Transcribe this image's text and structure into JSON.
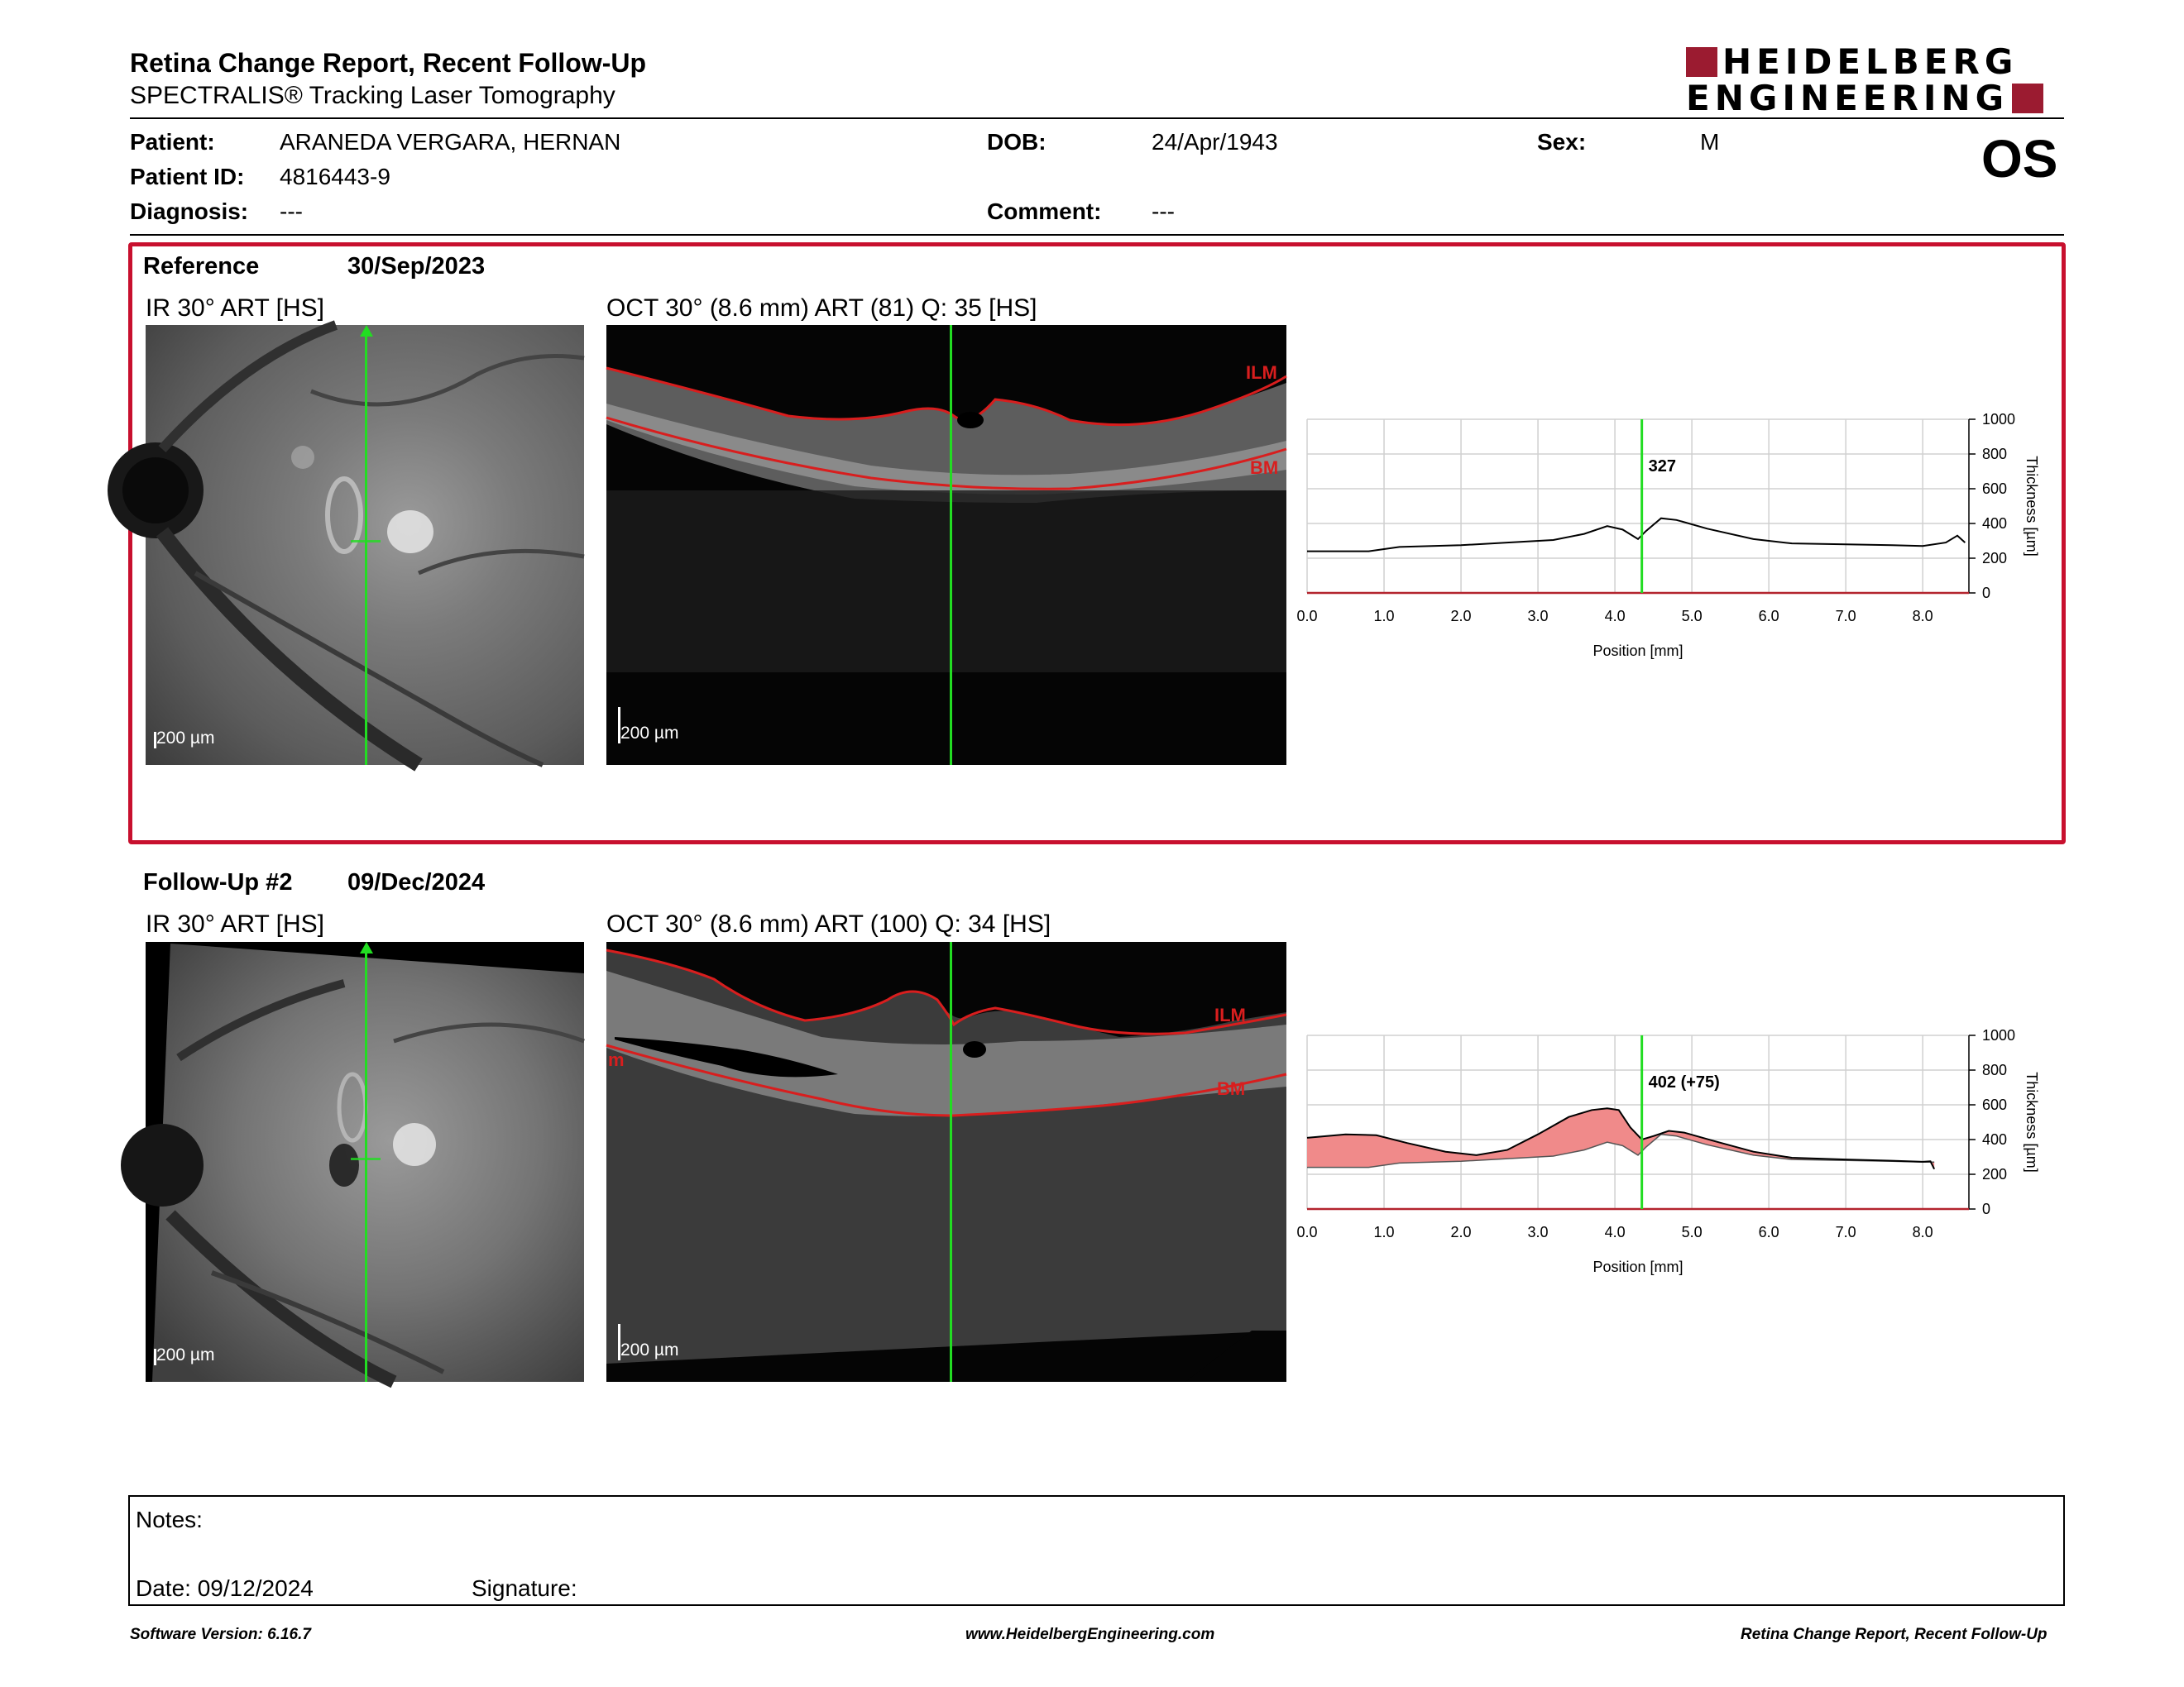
{
  "report": {
    "title": "Retina Change Report, Recent Follow-Up",
    "subtitle": "SPECTRALIS® Tracking Laser Tomography",
    "logo_line1": "HEIDELBERG",
    "logo_line2": "ENGINEERING"
  },
  "patient": {
    "patient_label": "Patient:",
    "patient_value": "ARANEDA VERGARA, HERNAN",
    "id_label": "Patient ID:",
    "id_value": "4816443-9",
    "diagnosis_label": "Diagnosis:",
    "diagnosis_value": "---",
    "dob_label": "DOB:",
    "dob_value": "24/Apr/1943",
    "comment_label": "Comment:",
    "comment_value": "---",
    "sex_label": "Sex:",
    "sex_value": "M",
    "eye": "OS"
  },
  "reference": {
    "label": "Reference",
    "date": "30/Sep/2023",
    "ir_caption": "IR 30° ART [HS]",
    "oct_caption": "OCT 30° (8.6 mm) ART (81) Q: 35 [HS]",
    "scale_ir": "200 µm",
    "scale_oct": "200 µm",
    "ilm": "ILM",
    "bm": "BM",
    "marker_value": "327"
  },
  "followup": {
    "label": "Follow-Up #2",
    "date": "09/Dec/2024",
    "ir_caption": "IR 30° ART [HS]",
    "oct_caption": "OCT 30° (8.6 mm) ART (100) Q: 34 [HS]",
    "scale_ir": "200 µm",
    "scale_oct": "200 µm",
    "ilm": "ILM",
    "bm": "BM",
    "m_label": "m",
    "marker_value": "402 (+75)"
  },
  "colors": {
    "frame_red": "#c8102e",
    "logo_red": "#9b1b30",
    "scan_line_green": "#22dd22",
    "difference_fill": "#f08a8a",
    "segmentation_red": "#d81e1e"
  },
  "chart_data": [
    {
      "type": "line",
      "xlabel": "Position [mm]",
      "ylabel": "Thickness [µm]",
      "xlim": [
        0.0,
        8.6
      ],
      "ylim": [
        0,
        1000
      ],
      "xticks": [
        "0.0",
        "1.0",
        "2.0",
        "3.0",
        "4.0",
        "5.0",
        "6.0",
        "7.0",
        "8.0"
      ],
      "yticks": [
        "0",
        "200",
        "400",
        "600",
        "800",
        "1000"
      ],
      "grid": true,
      "marker_x": 4.35,
      "marker_label": "327",
      "series": [
        {
          "x": [
            0.0,
            0.8,
            1.2,
            2.0,
            2.6,
            3.2,
            3.6,
            3.9,
            4.1,
            4.3,
            4.4,
            4.6,
            4.8,
            5.2,
            5.8,
            6.3,
            7.0,
            7.6,
            8.0,
            8.3,
            8.45,
            8.55
          ],
          "y": [
            240,
            240,
            265,
            275,
            290,
            305,
            340,
            385,
            365,
            310,
            355,
            430,
            420,
            370,
            310,
            285,
            280,
            275,
            270,
            290,
            330,
            290
          ]
        }
      ]
    },
    {
      "type": "area",
      "xlabel": "Position [mm]",
      "ylabel": "Thickness [µm]",
      "xlim": [
        0.0,
        8.6
      ],
      "ylim": [
        0,
        1000
      ],
      "xticks": [
        "0.0",
        "1.0",
        "2.0",
        "3.0",
        "4.0",
        "5.0",
        "6.0",
        "7.0",
        "8.0"
      ],
      "yticks": [
        "0",
        "200",
        "400",
        "600",
        "800",
        "1000"
      ],
      "grid": true,
      "marker_x": 4.35,
      "marker_label": "402 (+75)",
      "series": [
        {
          "x": [
            0.0,
            0.5,
            0.9,
            1.3,
            1.8,
            2.2,
            2.6,
            3.0,
            3.4,
            3.7,
            3.9,
            4.05,
            4.2,
            4.35,
            4.5,
            4.7,
            4.9,
            5.3,
            5.8,
            6.3,
            7.0,
            7.6,
            8.0,
            8.1,
            8.15
          ],
          "y": [
            410,
            430,
            425,
            380,
            330,
            310,
            340,
            430,
            530,
            570,
            580,
            570,
            470,
            400,
            420,
            450,
            440,
            390,
            330,
            295,
            285,
            278,
            272,
            275,
            230
          ]
        },
        {
          "x": [
            0.0,
            0.8,
            1.2,
            2.0,
            2.6,
            3.2,
            3.6,
            3.9,
            4.1,
            4.3,
            4.4,
            4.6,
            4.8,
            5.2,
            5.8,
            6.3,
            7.0,
            7.6,
            8.0,
            8.15
          ],
          "y": [
            240,
            240,
            265,
            275,
            290,
            305,
            340,
            385,
            365,
            310,
            355,
            430,
            420,
            370,
            310,
            285,
            280,
            275,
            270,
            270
          ]
        }
      ]
    }
  ],
  "notes": {
    "notes_label": "Notes:",
    "date_label": "Date: 09/12/2024",
    "signature_label": "Signature:"
  },
  "footer": {
    "software": "Software Version: 6.16.7",
    "website": "www.HeidelbergEngineering.com",
    "report_name": "Retina Change Report, Recent Follow-Up"
  }
}
